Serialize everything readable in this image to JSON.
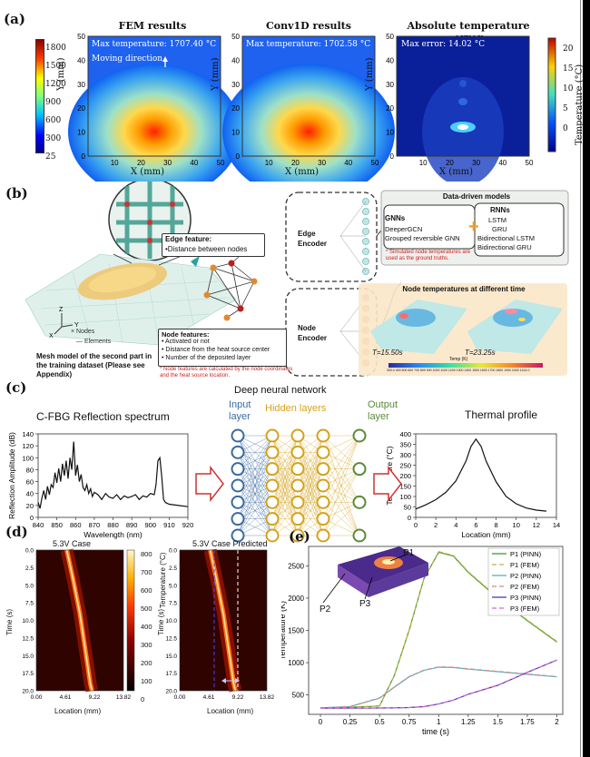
{
  "panel_a": {
    "letter": "(a)",
    "titles": [
      "FEM results",
      "Conv1D results",
      "Absolute temperature error"
    ],
    "ann_fem": "Max temperature: 1707.40 °C",
    "ann_moving": "Moving direction",
    "ann_conv": "Max temperature: 1702.58 °C",
    "ann_err": "Max error: 14.02 °C",
    "xlabel": "X (mm)",
    "ylabel": "Y (mm)",
    "cbar_left_ticks": [
      "1800",
      "1500",
      "1200",
      "900",
      "600",
      "300",
      "25"
    ],
    "cbar_right_ticks": [
      "20",
      "15",
      "10",
      "5",
      "0"
    ],
    "cbar_right_label": "Temperature (°C)"
  },
  "panel_b": {
    "letter": "(b)",
    "edge_feature_title": "Edge feature:",
    "edge_feature_item": "•Distance between nodes",
    "edge_encoder": "Edge Encoder",
    "node_encoder": "Node Encoder",
    "node_features_title": "Node features:",
    "node_features": [
      "• Activated or not",
      "• Distance from the heat source center",
      "• Number of the deposited layer"
    ],
    "node_features_note": "* Node features are calculated by the node coordinates and the heat source location.",
    "legend_nodes": "× Nodes",
    "legend_elements": "— Elements",
    "mesh_caption": "Mesh model of the second part in the training dataset (Please see Appendix)",
    "dd_title": "Data-driven models",
    "gnn_title": "GNNs",
    "gnn_items": [
      "DeeperGCN",
      "Grouped reversible GNN"
    ],
    "rnn_title": "RNNs",
    "rnn_items": [
      "LSTM",
      "GRU",
      "Bidirectional LSTM",
      "Bidirectional GRU"
    ],
    "dd_note": "* Simulated node temperatures are used as the ground truths.",
    "nt_title": "Node temperatures at different time",
    "t1": "T=15.50s",
    "t2": "T=23.25s",
    "temp_label": "Temp (K)",
    "temp_ticks": "300.0  400  500  600  700  800  900  1000  1100  1200  1300  1400  1500  1600  1700  1800  1900  2000  1414.0"
  },
  "panel_c": {
    "letter": "(c)",
    "spec_title": "C-FBG Reflection spectrum",
    "dnn_title": "Deep neural network",
    "input_layer": "Input layer",
    "hidden_layers": "Hidden layers",
    "output_layer": "Output layer",
    "thermal_title": "Thermal profile"
  },
  "panel_d": {
    "letter": "(d)",
    "title1": "5.3V Case",
    "title2": "5.3V Case Predicted",
    "ylabel": "Time (s)",
    "xlabel": "Location (mm)",
    "cbar_label": "Temperature (°C)",
    "cbar_ticks": [
      "800",
      "700",
      "600",
      "500",
      "400",
      "300",
      "200",
      "100",
      "0"
    ]
  },
  "panel_e": {
    "letter": "(e)",
    "probe_labels": [
      "P1",
      "P2",
      "P3"
    ]
  },
  "chart_data": [
    {
      "id": "c_spectrum",
      "type": "line",
      "title": "C-FBG Reflection spectrum",
      "xlabel": "Wavelength (nm)",
      "ylabel": "Reflection Amplitude (dB)",
      "xlim": [
        840,
        920
      ],
      "ylim": [
        0,
        140
      ],
      "xticks": [
        840,
        850,
        860,
        870,
        880,
        890,
        900,
        910,
        920
      ],
      "yticks": [
        0,
        20,
        40,
        60,
        80,
        100,
        120,
        140
      ],
      "x": [
        840,
        841,
        842,
        843,
        844,
        845,
        846,
        847,
        848,
        849,
        850,
        851,
        852,
        853,
        854,
        855,
        856,
        857,
        858,
        859,
        860,
        861,
        862,
        863,
        864,
        865,
        866,
        867,
        868,
        869,
        870,
        872,
        874,
        876,
        878,
        880,
        882,
        884,
        886,
        888,
        890,
        892,
        894,
        896,
        898,
        900,
        902,
        903,
        904,
        905,
        906,
        907,
        908,
        910,
        915,
        920
      ],
      "y": [
        25,
        15,
        32,
        45,
        30,
        52,
        38,
        55,
        50,
        75,
        58,
        82,
        60,
        90,
        70,
        95,
        65,
        100,
        80,
        127,
        70,
        88,
        60,
        72,
        50,
        45,
        55,
        40,
        48,
        35,
        42,
        38,
        30,
        40,
        34,
        32,
        38,
        30,
        36,
        33,
        35,
        38,
        30,
        36,
        34,
        40,
        38,
        55,
        95,
        100,
        70,
        30,
        25,
        22,
        20,
        18
      ]
    },
    {
      "id": "c_thermal",
      "type": "line",
      "title": "Thermal profile",
      "xlabel": "Location (mm)",
      "ylabel": "Temperature (°C)",
      "xlim": [
        0,
        14
      ],
      "ylim": [
        0,
        400
      ],
      "xticks": [
        0,
        2,
        4,
        6,
        8,
        10,
        12,
        14
      ],
      "yticks": [
        0,
        50,
        100,
        150,
        200,
        250,
        300,
        350,
        400
      ],
      "x": [
        0,
        1,
        2,
        3,
        4,
        5,
        5.5,
        6,
        6.5,
        7,
        8,
        9,
        10,
        11,
        12,
        13
      ],
      "y": [
        40,
        60,
        85,
        120,
        175,
        270,
        340,
        375,
        340,
        270,
        170,
        100,
        65,
        45,
        35,
        30
      ]
    },
    {
      "id": "e_temp",
      "type": "line",
      "xlabel": "time (s)",
      "ylabel": "Temperature (K)",
      "xlim": [
        -0.1,
        2.05
      ],
      "ylim": [
        200,
        2800
      ],
      "xticks": [
        0.0,
        0.25,
        0.5,
        0.75,
        1.0,
        1.25,
        1.5,
        1.75,
        2.0
      ],
      "yticks": [
        500,
        1000,
        1500,
        2000,
        2500
      ],
      "x": [
        0.0,
        0.25,
        0.5,
        0.625,
        0.75,
        0.875,
        1.0,
        1.125,
        1.25,
        1.5,
        1.75,
        2.0
      ],
      "series": [
        {
          "name": "P1 (PINN)",
          "color": "#3a9a3a",
          "dash": "",
          "values": [
            300,
            310,
            330,
            800,
            1500,
            2300,
            2710,
            2650,
            2400,
            2000,
            1650,
            1320
          ]
        },
        {
          "name": "P1 (FEM)",
          "color": "#c2b03a",
          "dash": "5,3",
          "values": [
            300,
            310,
            330,
            800,
            1500,
            2300,
            2720,
            2660,
            2410,
            2010,
            1660,
            1330
          ]
        },
        {
          "name": "P2 (PINN)",
          "color": "#4fb5c4",
          "dash": "",
          "values": [
            300,
            320,
            450,
            620,
            780,
            880,
            930,
            925,
            900,
            860,
            820,
            780
          ]
        },
        {
          "name": "P2 (FEM)",
          "color": "#d08a8a",
          "dash": "5,3",
          "values": [
            300,
            320,
            455,
            625,
            785,
            885,
            935,
            930,
            905,
            865,
            825,
            785
          ]
        },
        {
          "name": "P3 (PINN)",
          "color": "#4a3ab0",
          "dash": "",
          "values": [
            295,
            296,
            298,
            300,
            305,
            320,
            360,
            420,
            510,
            650,
            850,
            1040
          ]
        },
        {
          "name": "P3 (FEM)",
          "color": "#d06ad0",
          "dash": "5,3",
          "values": [
            295,
            296,
            298,
            300,
            305,
            320,
            360,
            420,
            510,
            652,
            852,
            1042
          ]
        }
      ]
    },
    {
      "id": "d_heat",
      "type": "heatmap",
      "xlabel": "Location (mm)",
      "ylabel": "Time (s)",
      "xticks": [
        "0.00",
        "4.61",
        "9.22",
        "13.82"
      ],
      "yticks": [
        "0.0",
        "2.5",
        "5.0",
        "7.5",
        "10.0",
        "12.5",
        "15.0",
        "17.5",
        "20.0"
      ],
      "cbar": {
        "min": 0,
        "max": 800
      }
    },
    {
      "id": "a_maps",
      "type": "heatmap",
      "xticks": [
        10,
        20,
        30,
        40,
        50
      ],
      "yticks": [
        0,
        10,
        20,
        30,
        40,
        50
      ],
      "xlim": [
        0,
        50
      ],
      "ylim": [
        0,
        50
      ],
      "cbar_fem": {
        "min": 25,
        "max": 1800
      },
      "cbar_err": {
        "min": 0,
        "max": 20
      }
    }
  ]
}
